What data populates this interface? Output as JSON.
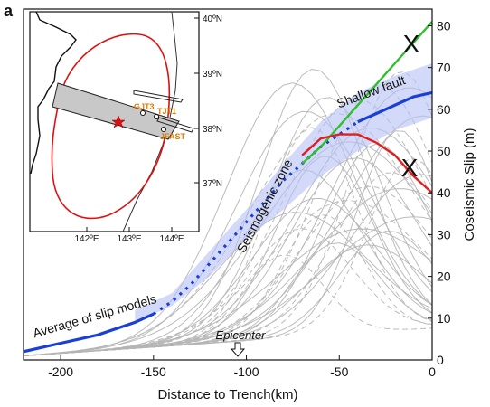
{
  "panel_label": "a",
  "chart_data": {
    "type": "line",
    "xlabel": "Distance to Trench(km)",
    "ylabel": "Coseismic Slip (m)",
    "xlim": [
      -220,
      0
    ],
    "ylim": [
      0,
      84
    ],
    "x_ticks": [
      -200,
      -150,
      -100,
      -50,
      0
    ],
    "x_tick_labels": [
      "-200",
      "-150",
      "-100",
      "-50",
      "0"
    ],
    "y_ticks": [
      0,
      10,
      20,
      30,
      40,
      50,
      60,
      70,
      80
    ],
    "y_tick_labels": [
      "0",
      "10",
      "20",
      "30",
      "40",
      "50",
      "60",
      "70",
      "80"
    ],
    "y_axis_side": "right",
    "colors": {
      "average": "#1a3fd6",
      "uncertainty_band": "#b6c0f5",
      "linear_extrapolation": "#2fbf2f",
      "decay_extrapolation": "#e02020",
      "slip_models": "#b5b5b5",
      "rejected_mark": "#111111"
    },
    "series": [
      {
        "style": "solid-dashed-solid",
        "x": [
          -220,
          -200,
          -180,
          -160,
          -150,
          -140,
          -130,
          -120,
          -110,
          -100,
          -90,
          -80,
          -70,
          -60,
          -50,
          -40,
          -30,
          -20,
          -10,
          0
        ],
        "y": [
          2,
          4,
          6,
          9,
          11,
          14,
          18,
          23,
          28,
          33,
          38,
          43,
          47,
          51,
          54,
          57,
          59,
          61,
          63,
          64
        ]
      },
      {
        "x": [
          -70,
          -60,
          -50,
          -40,
          -30,
          -20,
          -10,
          0
        ],
        "y": [
          47,
          51,
          56,
          61,
          66,
          71,
          76,
          81
        ]
      },
      {
        "x": [
          -70,
          -60,
          -50,
          -40,
          -30,
          -20,
          -10,
          0
        ],
        "y": [
          49,
          53,
          54,
          54,
          52,
          49,
          44,
          40
        ]
      }
    ],
    "uncertainty_band": {
      "x": [
        -160,
        -140,
        -120,
        -100,
        -80,
        -60,
        -40,
        -20,
        0
      ],
      "upper": [
        12,
        16,
        26,
        36,
        47,
        57,
        64,
        68,
        71
      ],
      "lower": [
        9,
        13,
        20,
        29,
        36,
        44,
        50,
        55,
        58
      ]
    },
    "annotations": {
      "average_label": "Average of slip models",
      "seismogenic_label": "Seismogenic zone",
      "shallow_label": "Shallow fault",
      "epicenter_label": "Epicenter",
      "epicenter_x": -105,
      "rejected_mark": "X",
      "rejected_points": [
        {
          "x": -11,
          "y": 75
        },
        {
          "x": -11,
          "y": 46
        }
      ]
    }
  },
  "inset_map": {
    "lat_labels": [
      "40ºN",
      "39ºN",
      "38ºN",
      "37ºN"
    ],
    "lon_labels": [
      "142ºE",
      "143ºE",
      "144ºE"
    ],
    "station_labels": [
      "GJT3",
      "TJT1",
      "JFAST"
    ],
    "colors": {
      "contour": "#e01010",
      "profile_fill": "#c8c8c8",
      "station_label": "#e07b00",
      "epicenter_star": "#e01010"
    }
  }
}
